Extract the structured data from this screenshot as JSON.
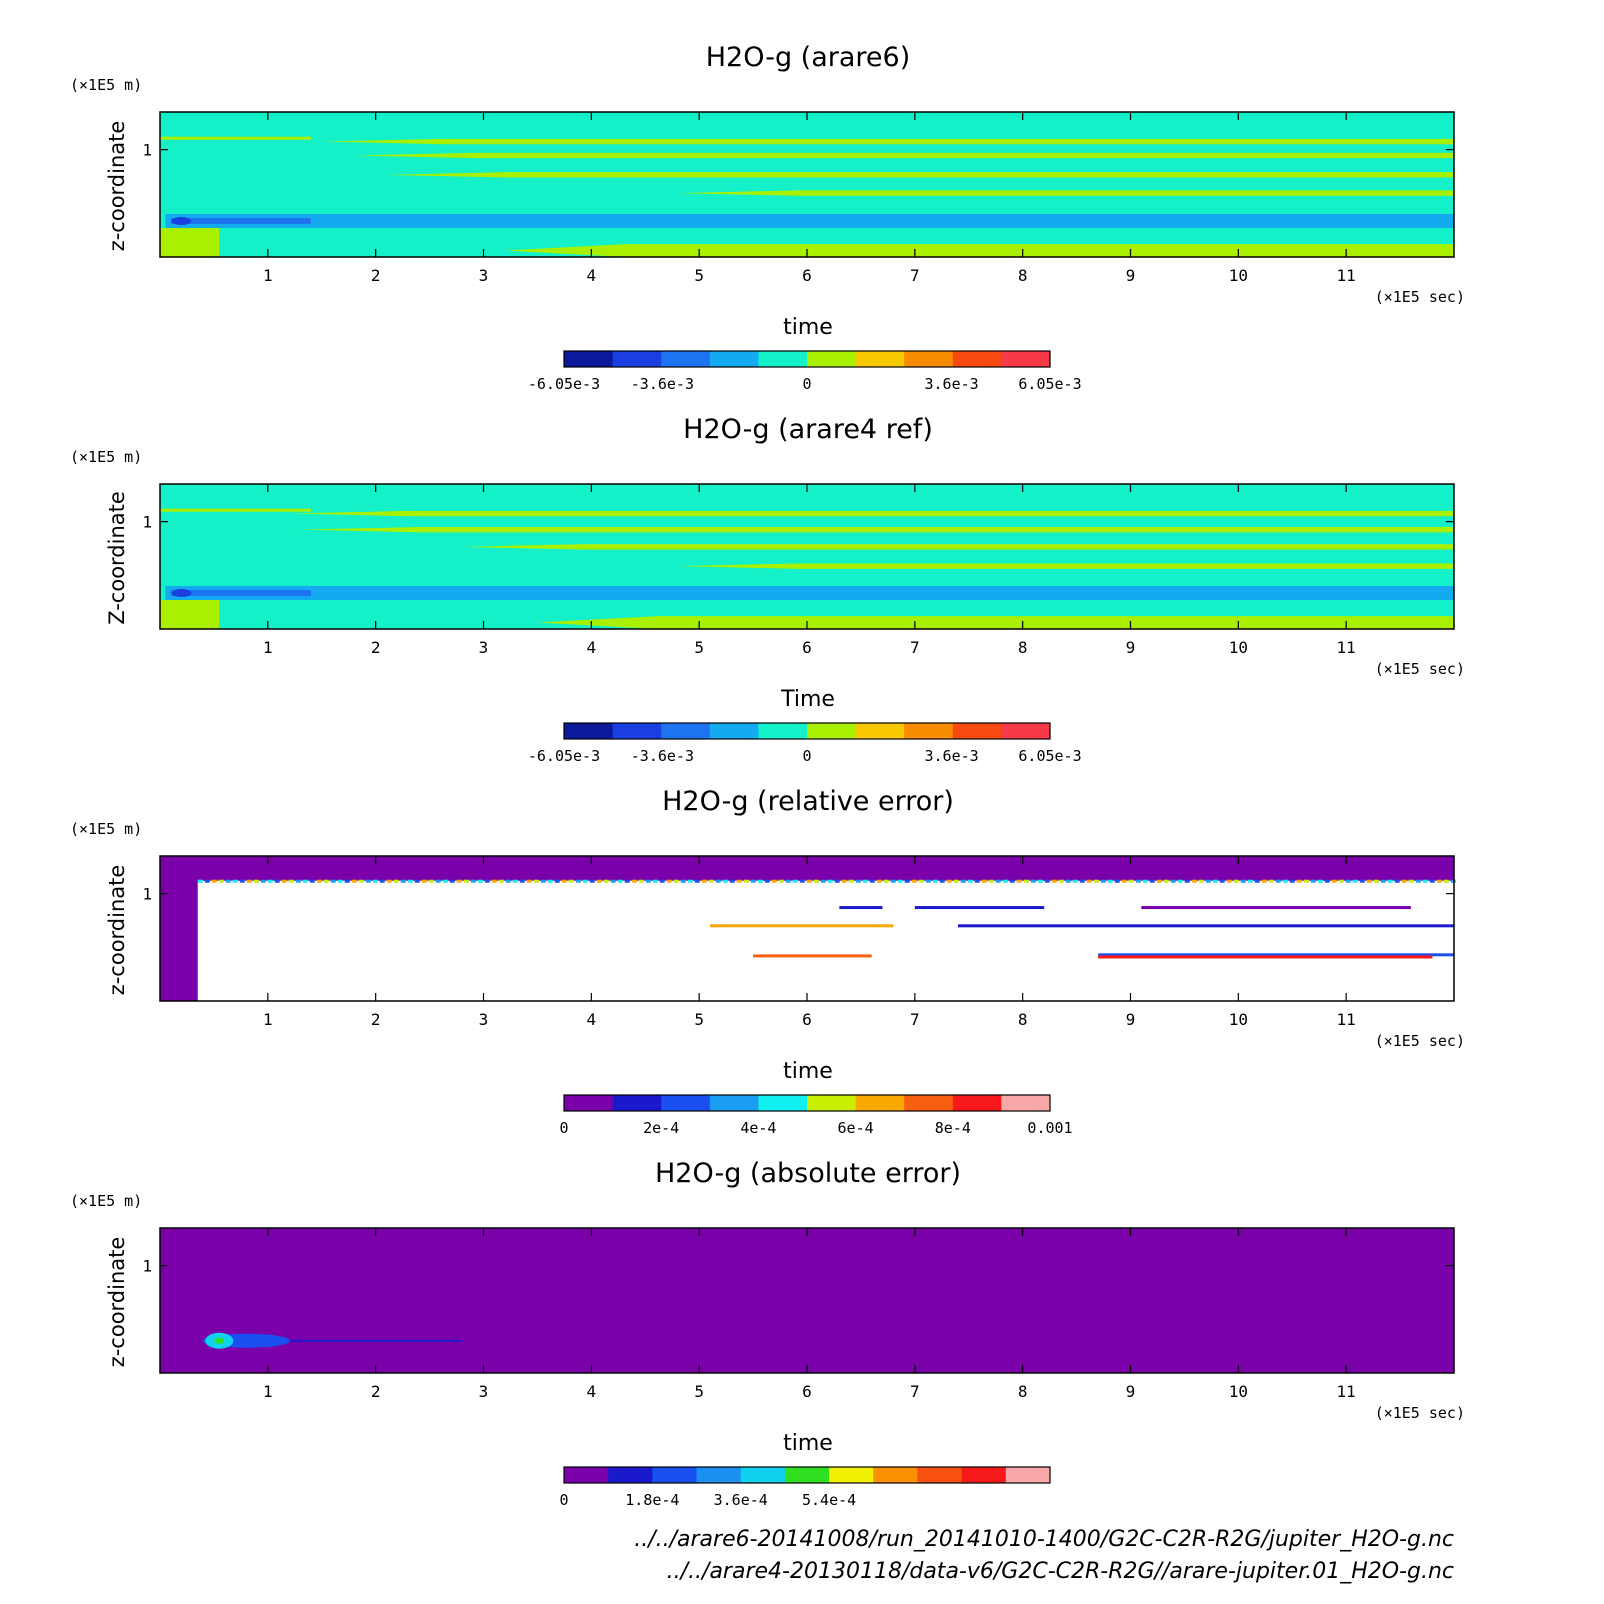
{
  "panels": [
    {
      "title": "H2O-g (arare6)",
      "xlabel": "time",
      "ylabel": "z-coordinate",
      "x_unit": "(×1E5 sec)",
      "y_unit": "(×1E5 m)",
      "colorbar_ticks": [
        "-6.05e-3",
        "-3.6e-3",
        "0",
        "3.6e-3",
        "6.05e-3"
      ],
      "colors": [
        "#0a1a9a",
        "#1a3fe0",
        "#1e74f0",
        "#14aaf0",
        "#14f0c8",
        "#a8f000",
        "#f8c800",
        "#f88c00",
        "#f84a10",
        "#f83a48"
      ]
    },
    {
      "title": "H2O-g (arare4 ref)",
      "xlabel": "Time",
      "ylabel": "Z-coordinate",
      "x_unit": "(×1E5 sec)",
      "y_unit": "(×1E5 m)",
      "colorbar_ticks": [
        "-6.05e-3",
        "-3.6e-3",
        "0",
        "3.6e-3",
        "6.05e-3"
      ],
      "colors": [
        "#0a1a9a",
        "#1a3fe0",
        "#1e74f0",
        "#14aaf0",
        "#14f0c8",
        "#a8f000",
        "#f8c800",
        "#f88c00",
        "#f84a10",
        "#f83a48"
      ]
    },
    {
      "title": "H2O-g (relative error)",
      "xlabel": "time",
      "ylabel": "z-coordinate",
      "x_unit": "(×1E5 sec)",
      "y_unit": "(×1E5 m)",
      "colorbar_ticks": [
        "0",
        "2e-4",
        "4e-4",
        "6e-4",
        "8e-4",
        "0.001"
      ],
      "colors": [
        "#7a00aa",
        "#1a1acc",
        "#1a50f0",
        "#1a9cf0",
        "#10f0f0",
        "#c8f000",
        "#f8a800",
        "#f86010",
        "#f81a1a",
        "#f8a8a8"
      ]
    },
    {
      "title": "H2O-g (absolute error)",
      "xlabel": "time",
      "ylabel": "z-coordinate",
      "x_unit": "(×1E5 sec)",
      "y_unit": "(×1E5 m)",
      "colorbar_ticks": [
        "0",
        "1.8e-4",
        "3.6e-4",
        "5.4e-4"
      ],
      "colors": [
        "#7a00aa",
        "#1a1acc",
        "#1a50f0",
        "#1a90f0",
        "#10d0f0",
        "#30e020",
        "#f0f000",
        "#f89000",
        "#f85010",
        "#f81a1a",
        "#f8a8a8"
      ]
    }
  ],
  "chart_data": [
    {
      "type": "heatmap",
      "title": "H2O-g (arare6)",
      "xlabel": "time",
      "ylabel": "z-coordinate",
      "xlim": [
        0,
        12
      ],
      "ylim": [
        0,
        1.35
      ],
      "x_ticks": [
        1,
        2,
        3,
        4,
        5,
        6,
        7,
        8,
        9,
        10,
        11
      ],
      "y_ticks": [
        1
      ],
      "levels": [
        -0.00605,
        -0.0036,
        0,
        0.0036,
        0.00605
      ],
      "bands": [
        {
          "z": [
            1.05,
            1.1
          ],
          "x_start": 1.5,
          "value_color": "#a8f000"
        },
        {
          "z": [
            0.92,
            0.97
          ],
          "x_start": 1.8,
          "value_color": "#a8f000"
        },
        {
          "z": [
            0.74,
            0.79
          ],
          "x_start": 2.1,
          "value_color": "#a8f000"
        },
        {
          "z": [
            0.57,
            0.62
          ],
          "x_start": 4.8,
          "value_color": "#a8f000"
        },
        {
          "z": [
            0.27,
            0.4
          ],
          "x_start": 0.05,
          "value_color": "#14aaf0"
        },
        {
          "z": [
            0.0,
            0.12
          ],
          "x_start": 3.2,
          "value_color": "#a8f000"
        }
      ]
    },
    {
      "type": "heatmap",
      "title": "H2O-g (arare4 ref)",
      "xlabel": "Time",
      "ylabel": "Z-coordinate",
      "xlim": [
        0,
        12
      ],
      "ylim": [
        0,
        1.35
      ],
      "x_ticks": [
        1,
        2,
        3,
        4,
        5,
        6,
        7,
        8,
        9,
        10,
        11
      ],
      "y_ticks": [
        1
      ],
      "levels": [
        -0.00605,
        -0.0036,
        0,
        0.0036,
        0.00605
      ],
      "bands": [
        {
          "z": [
            1.05,
            1.1
          ],
          "x_start": 1.2,
          "value_color": "#a8f000"
        },
        {
          "z": [
            0.9,
            0.95
          ],
          "x_start": 1.3,
          "value_color": "#a8f000"
        },
        {
          "z": [
            0.74,
            0.79
          ],
          "x_start": 2.8,
          "value_color": "#a8f000"
        },
        {
          "z": [
            0.56,
            0.61
          ],
          "x_start": 4.8,
          "value_color": "#a8f000"
        },
        {
          "z": [
            0.27,
            0.4
          ],
          "x_start": 0.05,
          "value_color": "#14aaf0"
        },
        {
          "z": [
            0.0,
            0.12
          ],
          "x_start": 3.5,
          "value_color": "#a8f000"
        }
      ]
    },
    {
      "type": "heatmap",
      "title": "H2O-g (relative error)",
      "xlabel": "time",
      "ylabel": "z-coordinate",
      "xlim": [
        0,
        12
      ],
      "ylim": [
        0,
        1.35
      ],
      "x_ticks": [
        1,
        2,
        3,
        4,
        5,
        6,
        7,
        8,
        9,
        10,
        11
      ],
      "y_ticks": [
        1
      ],
      "levels": [
        0,
        0.0002,
        0.0004,
        0.0006,
        0.0008,
        0.001
      ]
    },
    {
      "type": "heatmap",
      "title": "H2O-g (absolute error)",
      "xlabel": "time",
      "ylabel": "z-coordinate",
      "xlim": [
        0,
        12
      ],
      "ylim": [
        0,
        1.35
      ],
      "x_ticks": [
        1,
        2,
        3,
        4,
        5,
        6,
        7,
        8,
        9,
        10,
        11
      ],
      "y_ticks": [
        1
      ],
      "levels": [
        0,
        0.00018,
        0.00036,
        0.00054
      ]
    }
  ],
  "footer": {
    "line1": "../../arare6-20141008/run_20141010-1400/G2C-C2R-R2G/jupiter_H2O-g.nc",
    "line2": "../../arare4-20130118/data-v6/G2C-C2R-R2G//arare-jupiter.01_H2O-g.nc"
  }
}
